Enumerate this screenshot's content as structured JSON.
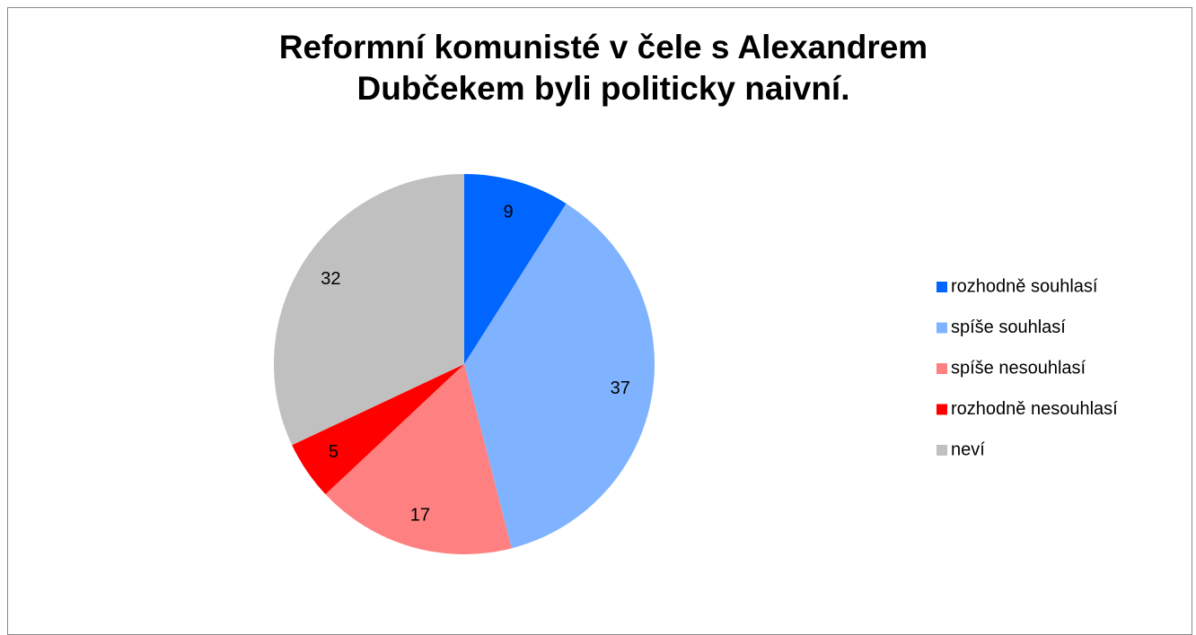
{
  "chart_data": {
    "type": "pie",
    "title": "Reformní komunisté v čele s Alexandrem Dubčekem byli politicky naivní.",
    "categories": [
      "rozhodně souhlasí",
      "spíše souhlasí",
      "spíše nesouhlasí",
      "rozhodně nesouhlasí",
      "neví"
    ],
    "values": [
      9,
      37,
      17,
      5,
      32
    ],
    "colors": [
      "#0066ff",
      "#80b3ff",
      "#ff8080",
      "#ff0000",
      "#c0c0c0"
    ],
    "legend": "right"
  }
}
